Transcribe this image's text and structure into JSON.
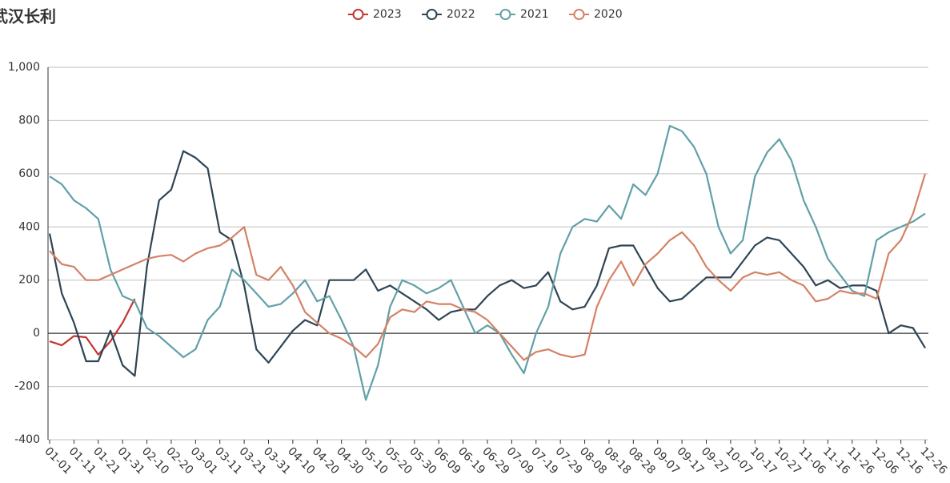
{
  "chart_data": {
    "type": "line",
    "title": "武汉长利",
    "categories": [
      "01-01",
      null,
      "01-11",
      null,
      "01-21",
      null,
      "01-31",
      null,
      "02-10",
      null,
      "02-20",
      null,
      "03-01",
      null,
      "03-11",
      null,
      "03-21",
      null,
      "03-31",
      null,
      "04-10",
      null,
      "04-20",
      null,
      "04-30",
      null,
      "05-10",
      null,
      "05-20",
      null,
      "05-30",
      null,
      "06-09",
      null,
      "06-19",
      null,
      "06-29",
      null,
      "07-09",
      null,
      "07-19",
      null,
      "07-29",
      null,
      "08-08",
      null,
      "08-18",
      null,
      "08-28",
      null,
      "09-07",
      null,
      "09-17",
      null,
      "09-27",
      null,
      "10-07",
      null,
      "10-17",
      null,
      "10-27",
      null,
      "11-06",
      null,
      "11-16",
      null,
      "11-26",
      null,
      "12-06",
      null,
      "12-16",
      null,
      "12-26"
    ],
    "series": [
      {
        "name": "2023",
        "color": "#c23531",
        "values": [
          -30,
          -45,
          -10,
          -15,
          -80,
          -30,
          40,
          130,
          null,
          null,
          null,
          null,
          null,
          null,
          null,
          null,
          null,
          null,
          null,
          null,
          null,
          null,
          null,
          null,
          null,
          null,
          null,
          null,
          null,
          null,
          null,
          null,
          null,
          null,
          null,
          null,
          null,
          null,
          null,
          null,
          null,
          null,
          null,
          null,
          null,
          null,
          null,
          null,
          null,
          null,
          null,
          null,
          null,
          null,
          null,
          null,
          null,
          null,
          null,
          null,
          null,
          null,
          null,
          null,
          null,
          null,
          null,
          null,
          null,
          null,
          null,
          null,
          null
        ]
      },
      {
        "name": "2022",
        "color": "#2f4554",
        "values": [
          375,
          150,
          40,
          -105,
          -105,
          10,
          -120,
          -160,
          250,
          500,
          540,
          685,
          660,
          620,
          380,
          350,
          180,
          -60,
          -110,
          -50,
          10,
          50,
          30,
          200,
          200,
          200,
          240,
          160,
          180,
          150,
          120,
          90,
          50,
          80,
          90,
          90,
          140,
          180,
          200,
          170,
          180,
          230,
          120,
          90,
          100,
          180,
          320,
          330,
          330,
          250,
          170,
          120,
          130,
          170,
          210,
          210,
          210,
          270,
          330,
          360,
          350,
          300,
          250,
          180,
          200,
          170,
          180,
          180,
          160,
          0,
          30,
          20,
          -55
        ]
      },
      {
        "name": "2021",
        "color": "#61a0a8",
        "values": [
          590,
          560,
          500,
          470,
          430,
          240,
          140,
          120,
          20,
          -10,
          -50,
          -90,
          -60,
          50,
          100,
          240,
          200,
          150,
          100,
          110,
          150,
          200,
          120,
          140,
          50,
          -50,
          -250,
          -120,
          100,
          200,
          180,
          150,
          170,
          200,
          100,
          0,
          30,
          0,
          -80,
          -150,
          0,
          100,
          300,
          400,
          430,
          420,
          480,
          430,
          560,
          520,
          600,
          780,
          760,
          700,
          600,
          400,
          300,
          350,
          590,
          680,
          730,
          650,
          500,
          400,
          280,
          220,
          160,
          140,
          350,
          380,
          400,
          420,
          450
        ]
      },
      {
        "name": "2020",
        "color": "#d48265",
        "values": [
          310,
          260,
          250,
          200,
          200,
          220,
          240,
          260,
          280,
          290,
          295,
          270,
          300,
          320,
          330,
          360,
          400,
          220,
          200,
          250,
          180,
          80,
          40,
          0,
          -20,
          -50,
          -90,
          -40,
          60,
          90,
          80,
          120,
          110,
          110,
          90,
          80,
          50,
          0,
          -50,
          -100,
          -70,
          -60,
          -80,
          -90,
          -80,
          100,
          200,
          270,
          180,
          260,
          300,
          350,
          380,
          330,
          250,
          200,
          160,
          210,
          230,
          220,
          230,
          200,
          180,
          120,
          130,
          160,
          150,
          150,
          130,
          300,
          350,
          450,
          600
        ]
      }
    ],
    "ylim": [
      -400,
      1000
    ],
    "yticks": [
      -400,
      -200,
      0,
      200,
      400,
      600,
      800,
      {
        "value": 1000,
        "label": "1,000"
      }
    ],
    "grid": true
  }
}
